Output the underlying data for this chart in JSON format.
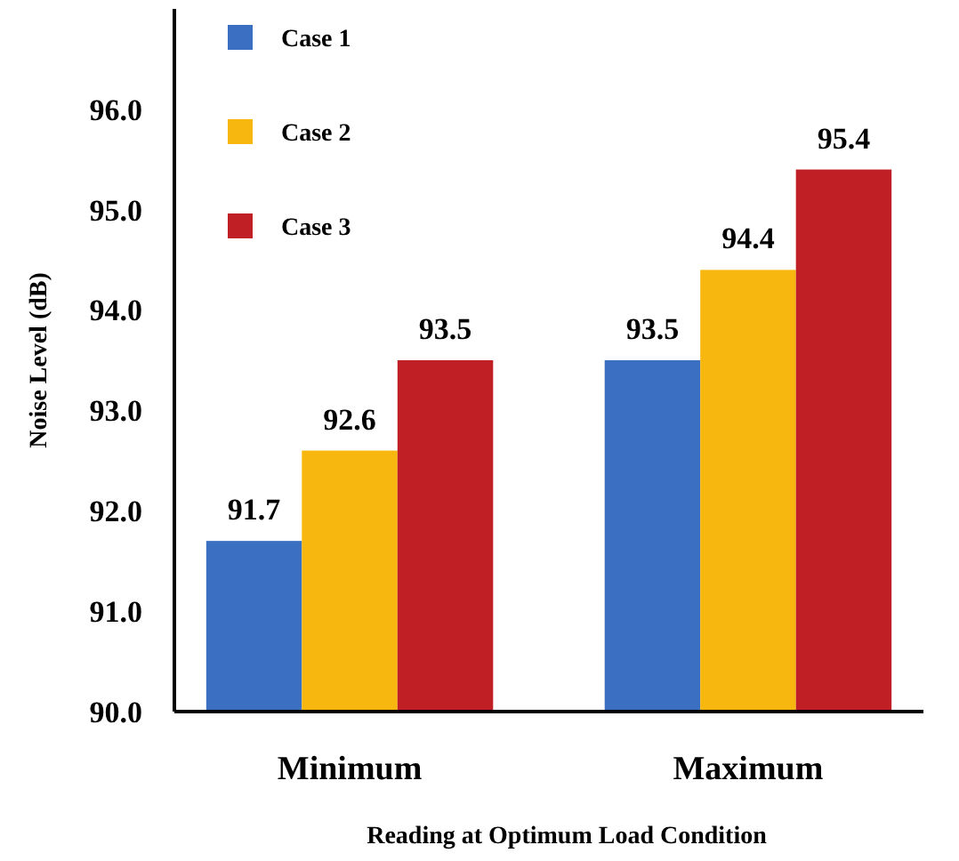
{
  "chart_data": {
    "type": "bar",
    "xlabel": "Reading at Optimum Load Condition",
    "ylabel": "Noise Level (dB)",
    "categories": [
      "Minimum",
      "Maximum"
    ],
    "series": [
      {
        "name": "Case 1",
        "color": "#3a6fc1",
        "values": [
          91.7,
          93.5
        ]
      },
      {
        "name": "Case 2",
        "color": "#f7b70f",
        "values": [
          92.6,
          94.4
        ]
      },
      {
        "name": "Case 3",
        "color": "#c01f26",
        "values": [
          93.5,
          95.4
        ]
      }
    ],
    "ylim": [
      90,
      97
    ],
    "yticks": [
      {
        "value": 90,
        "label": "90.0"
      },
      {
        "value": 91,
        "label": "91.0"
      },
      {
        "value": 92,
        "label": "92.0"
      },
      {
        "value": 93,
        "label": "93.0"
      },
      {
        "value": 94,
        "label": "94.0"
      },
      {
        "value": 95,
        "label": "95.0"
      },
      {
        "value": 96,
        "label": "96.0"
      }
    ],
    "data_labels": true,
    "legend": "top left",
    "grid": false
  }
}
